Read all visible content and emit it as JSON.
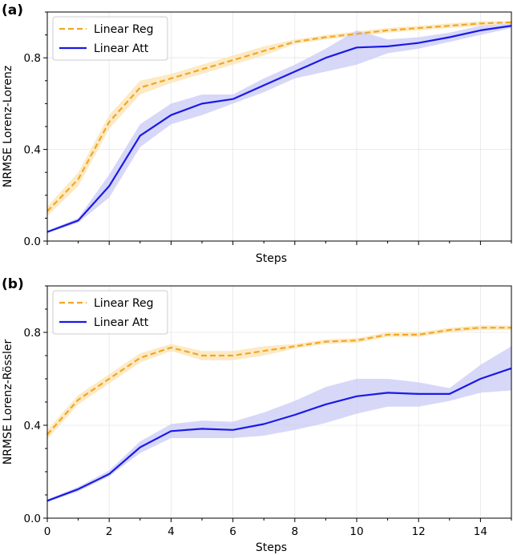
{
  "colors": {
    "linear_reg": "#f5a623",
    "linear_reg_band": "#fbe3b2",
    "linear_att": "#1a1ae6",
    "linear_att_band": "#c9c9f5",
    "grid": "#e6e6e6"
  },
  "chart_data": [
    {
      "panel": "(a)",
      "type": "line",
      "xlabel": "Steps",
      "ylabel": "NRMSE Lorenz-Lorenz",
      "xlim": [
        0,
        15
      ],
      "ylim": [
        0,
        1.0
      ],
      "yticks": [
        0.0,
        0.4,
        0.8
      ],
      "ytick_labels": [
        "0.0",
        "0.4",
        "0.8"
      ],
      "xticks": [
        0,
        2,
        4,
        6,
        8,
        10,
        12,
        14
      ],
      "xtick_labels": [],
      "grid": true,
      "legend": "top-left",
      "series": [
        {
          "name": "Linear Reg",
          "style": "dashed",
          "x": [
            0,
            1,
            2,
            3,
            4,
            5,
            6,
            7,
            8,
            9,
            10,
            11,
            12,
            13,
            14,
            15
          ],
          "values": [
            0.13,
            0.27,
            0.52,
            0.67,
            0.71,
            0.75,
            0.79,
            0.83,
            0.87,
            0.89,
            0.905,
            0.92,
            0.93,
            0.94,
            0.95,
            0.955
          ],
          "band_low": [
            0.11,
            0.24,
            0.49,
            0.64,
            0.69,
            0.73,
            0.77,
            0.81,
            0.86,
            0.88,
            0.895,
            0.91,
            0.92,
            0.93,
            0.94,
            0.95
          ],
          "band_high": [
            0.15,
            0.3,
            0.55,
            0.7,
            0.73,
            0.77,
            0.81,
            0.85,
            0.88,
            0.9,
            0.915,
            0.93,
            0.94,
            0.95,
            0.96,
            0.96
          ]
        },
        {
          "name": "Linear Att",
          "style": "solid",
          "x": [
            0,
            1,
            2,
            3,
            4,
            5,
            6,
            7,
            8,
            9,
            10,
            11,
            12,
            13,
            14,
            15
          ],
          "values": [
            0.04,
            0.09,
            0.24,
            0.46,
            0.55,
            0.6,
            0.62,
            0.68,
            0.74,
            0.8,
            0.845,
            0.85,
            0.865,
            0.89,
            0.92,
            0.94
          ],
          "band_low": [
            0.035,
            0.08,
            0.19,
            0.41,
            0.51,
            0.55,
            0.6,
            0.65,
            0.71,
            0.74,
            0.77,
            0.82,
            0.84,
            0.87,
            0.9,
            0.93
          ],
          "band_high": [
            0.045,
            0.1,
            0.29,
            0.51,
            0.6,
            0.64,
            0.64,
            0.71,
            0.77,
            0.84,
            0.92,
            0.88,
            0.89,
            0.91,
            0.94,
            0.95
          ]
        }
      ]
    },
    {
      "panel": "(b)",
      "type": "line",
      "xlabel": "Steps",
      "ylabel": "NRMSE Lorenz-Rössler",
      "xlim": [
        0,
        15
      ],
      "ylim": [
        0,
        1.0
      ],
      "yticks": [
        0.0,
        0.4,
        0.8
      ],
      "ytick_labels": [
        "0.0",
        "0.4",
        "0.8"
      ],
      "xticks": [
        0,
        2,
        4,
        6,
        8,
        10,
        12,
        14
      ],
      "xtick_labels": [
        "0",
        "2",
        "4",
        "6",
        "8",
        "10",
        "12",
        "14"
      ],
      "grid": true,
      "legend": "top-left",
      "series": [
        {
          "name": "Linear Reg",
          "style": "dashed",
          "x": [
            0,
            1,
            2,
            3,
            4,
            5,
            6,
            7,
            8,
            9,
            10,
            11,
            12,
            13,
            14,
            15
          ],
          "values": [
            0.36,
            0.51,
            0.6,
            0.69,
            0.735,
            0.7,
            0.7,
            0.72,
            0.74,
            0.76,
            0.765,
            0.79,
            0.79,
            0.81,
            0.82,
            0.82
          ],
          "band_low": [
            0.34,
            0.49,
            0.58,
            0.67,
            0.72,
            0.68,
            0.68,
            0.7,
            0.73,
            0.75,
            0.755,
            0.78,
            0.78,
            0.8,
            0.81,
            0.81
          ],
          "band_high": [
            0.38,
            0.53,
            0.62,
            0.71,
            0.75,
            0.72,
            0.72,
            0.74,
            0.75,
            0.77,
            0.775,
            0.8,
            0.8,
            0.82,
            0.83,
            0.83
          ]
        },
        {
          "name": "Linear Att",
          "style": "solid",
          "x": [
            0,
            1,
            2,
            3,
            4,
            5,
            6,
            7,
            8,
            9,
            10,
            11,
            12,
            13,
            14,
            15
          ],
          "values": [
            0.075,
            0.125,
            0.19,
            0.305,
            0.375,
            0.385,
            0.38,
            0.405,
            0.445,
            0.49,
            0.525,
            0.54,
            0.535,
            0.535,
            0.6,
            0.645
          ],
          "band_low": [
            0.07,
            0.115,
            0.18,
            0.28,
            0.345,
            0.345,
            0.345,
            0.355,
            0.38,
            0.41,
            0.45,
            0.48,
            0.48,
            0.505,
            0.54,
            0.55
          ],
          "band_high": [
            0.08,
            0.135,
            0.205,
            0.33,
            0.405,
            0.42,
            0.415,
            0.455,
            0.505,
            0.565,
            0.6,
            0.6,
            0.585,
            0.56,
            0.66,
            0.74
          ]
        }
      ]
    }
  ]
}
